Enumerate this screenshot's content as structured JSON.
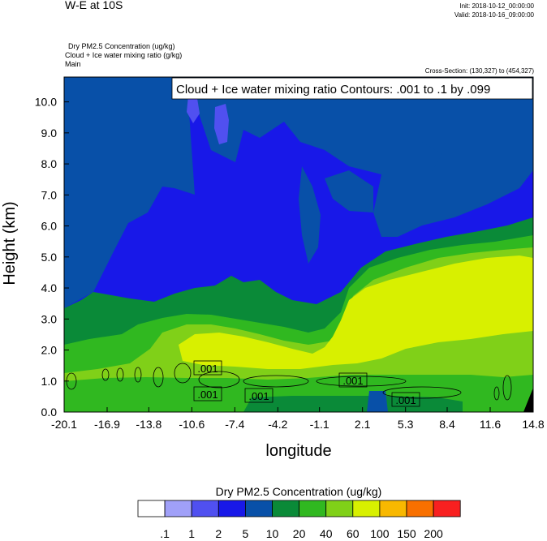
{
  "header": {
    "title": "W-E at 10S",
    "init": "Init: 2018-10-12_00:00:00",
    "valid": "Valid: 2018-10-16_09:00:00",
    "fields": [
      "Dry PM2.5 Concentration   (ug/kg)",
      "Cloud + Ice water mixing ratio   (g/kg)",
      "Main"
    ],
    "cross_section": "Cross-Section: (130,327) to (454,327)"
  },
  "chart_data": {
    "type": "heatmap",
    "title": "W-E at 10S",
    "xlabel": "longitude",
    "ylabel": "Height (km)",
    "xlim": [
      -20.1,
      14.8
    ],
    "ylim": [
      0,
      10.8
    ],
    "xticks": [
      "-20.1",
      "-16.9",
      "-13.8",
      "-10.6",
      "-7.4",
      "-4.2",
      "-1.1",
      "2.1",
      "5.3",
      "8.4",
      "11.6",
      "14.8"
    ],
    "yticks": [
      "0.0",
      "1.0",
      "2.0",
      "3.0",
      "4.0",
      "5.0",
      "6.0",
      "7.0",
      "8.0",
      "9.0",
      "10.0"
    ],
    "filled_field": "Dry PM2.5 Concentration (ug/kg)",
    "contour_field": "Cloud + Ice water mixing ratio Contours: .001 to .1 by .099",
    "contour_labels": [
      ".001",
      ".001",
      ".001",
      ".001",
      ".001"
    ],
    "colorbar_title": "Dry PM2.5 Concentration  (ug/kg)",
    "colorbar_levels": [
      ".1",
      "1",
      "2",
      "5",
      "10",
      "20",
      "40",
      "60",
      "100",
      "150",
      "200"
    ],
    "colorbar_colors": [
      "#ffffff",
      "#a0a0f8",
      "#5050f0",
      "#1818e8",
      "#0850a8",
      "#0a8a38",
      "#30b820",
      "#80d018",
      "#d8f000",
      "#f8b800",
      "#f87000",
      "#f82020"
    ]
  }
}
